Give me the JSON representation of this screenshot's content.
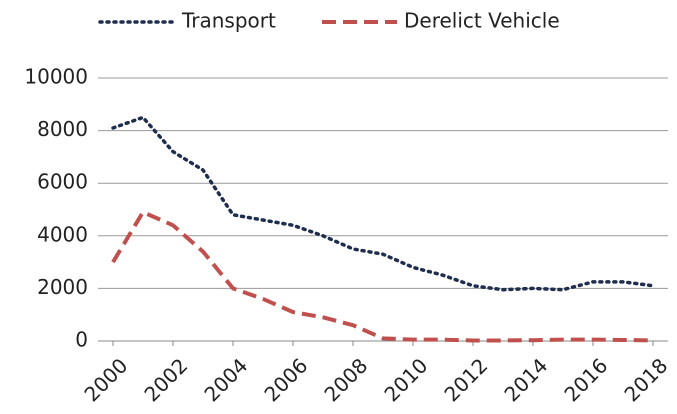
{
  "chart_data": {
    "type": "line",
    "x": [
      2000,
      2001,
      2002,
      2003,
      2004,
      2005,
      2006,
      2007,
      2008,
      2009,
      2010,
      2011,
      2012,
      2013,
      2014,
      2015,
      2016,
      2017,
      2018
    ],
    "series": [
      {
        "name": "Transport",
        "color": "#1f2d4e",
        "style": "dotted",
        "values": [
          8100,
          8500,
          7200,
          6500,
          4800,
          4600,
          4400,
          4000,
          3500,
          3300,
          2800,
          2500,
          2100,
          1950,
          2000,
          1950,
          2250,
          2250,
          2100
        ]
      },
      {
        "name": "Derelict Vehicle",
        "color": "#c0504d",
        "style": "dashed",
        "values": [
          3000,
          4900,
          4400,
          3400,
          2000,
          1600,
          1100,
          900,
          600,
          100,
          50,
          50,
          20,
          20,
          30,
          50,
          50,
          40,
          20
        ]
      }
    ],
    "xlim": [
      1999.5,
      2018.5
    ],
    "xticks": [
      2000,
      2002,
      2004,
      2006,
      2008,
      2010,
      2012,
      2014,
      2016,
      2018
    ],
    "ylim": [
      0,
      10000
    ],
    "yticks": [
      0,
      2000,
      4000,
      6000,
      8000,
      10000
    ],
    "grid": true,
    "legend": "top"
  }
}
